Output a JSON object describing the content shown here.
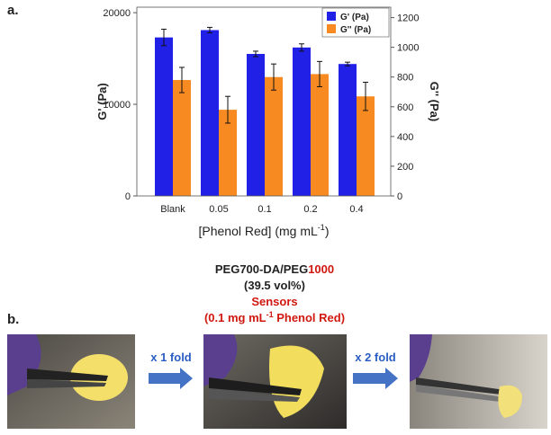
{
  "chart_data": {
    "type": "bar",
    "panel_label": "a.",
    "categories": [
      "Blank",
      "0.05",
      "0.1",
      "0.2",
      "0.4"
    ],
    "series": [
      {
        "name": "G' (Pa)",
        "color": "#2020e6",
        "values": [
          17300,
          18100,
          15500,
          16200,
          14400
        ],
        "errors": [
          900,
          300,
          300,
          400,
          200
        ]
      },
      {
        "name": "G'' (Pa)",
        "color": "#f78b22",
        "axis": "y2",
        "values": [
          780,
          580,
          800,
          820,
          670
        ],
        "errors": [
          85,
          90,
          88,
          85,
          95
        ]
      }
    ],
    "ylim": [
      0,
      20600
    ],
    "yticks": [
      0,
      10000,
      20000
    ],
    "y2lim": [
      0,
      1270
    ],
    "y2ticks": [
      0,
      200,
      400,
      600,
      800,
      1000,
      1200
    ],
    "y_label": "G' (Pa)",
    "y2_label": "G'' (Pa)",
    "x_label": [
      "[Phenol Red] (mg mL",
      "-1",
      ")"
    ],
    "legend": "top-right"
  },
  "panel_b": {
    "label": "b.",
    "caption": [
      [
        "PEG700-DA/PEG",
        "1000"
      ],
      [
        "(39.5 vol%)"
      ],
      [
        "Sensors"
      ],
      [
        "(0.1 mg mL",
        "-1",
        " Phenol Red)"
      ]
    ],
    "steps": [
      "x 1 fold",
      "x 2 fold"
    ]
  }
}
